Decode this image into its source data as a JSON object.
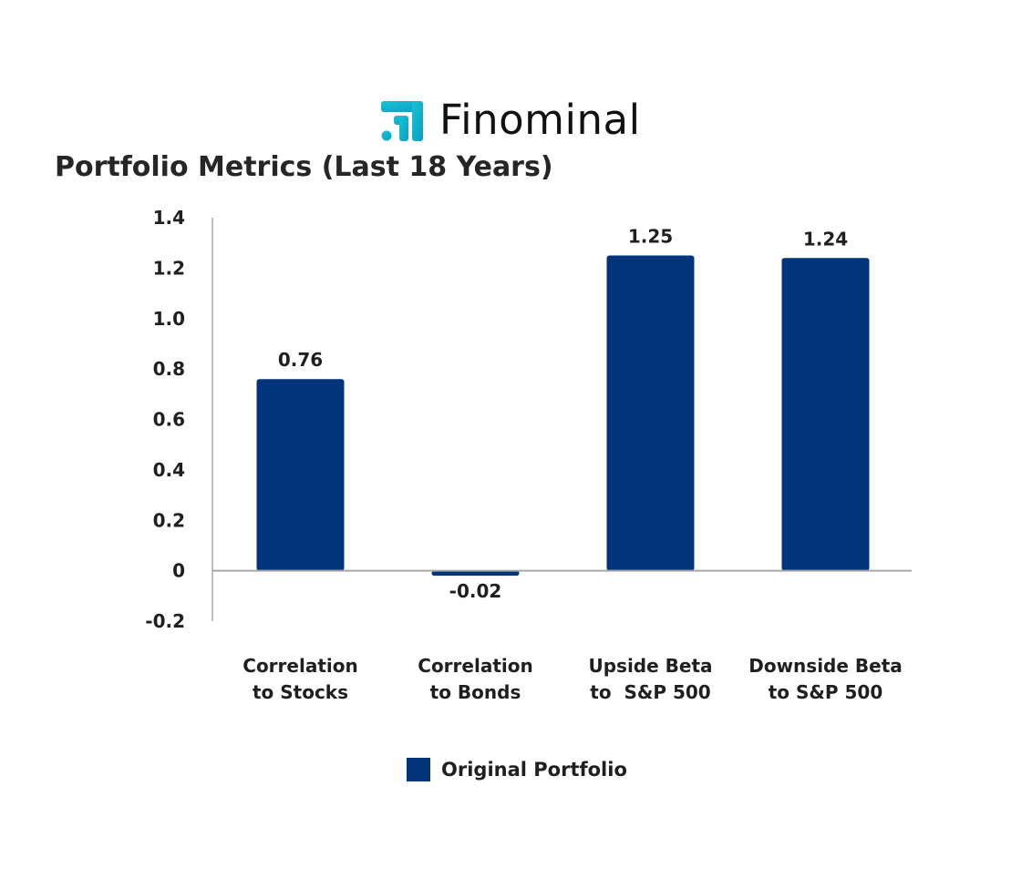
{
  "brand": {
    "name": "Finominal",
    "logo_colors": [
      "#19c3d3",
      "#0a9ec4"
    ]
  },
  "chart_data": {
    "type": "bar",
    "title": "Portfolio Metrics (Last 18 Years)",
    "categories": [
      [
        "Correlation",
        "to Stocks"
      ],
      [
        "Correlation",
        "to Bonds"
      ],
      [
        "Upside Beta",
        "to  S&P 500"
      ],
      [
        "Downside Beta",
        "to S&P 500"
      ]
    ],
    "series": [
      {
        "name": "Original Portfolio",
        "values": [
          0.76,
          -0.02,
          1.25,
          1.24
        ],
        "data_labels": [
          "0.76",
          "-0.02",
          "1.25",
          "1.24"
        ],
        "color": "#02347a"
      }
    ],
    "ylim": [
      -0.2,
      1.4
    ],
    "yticks": [
      1.4,
      1.2,
      1.0,
      0.8,
      0.6,
      0.4,
      0.2,
      0,
      -0.2
    ],
    "ytick_labels": [
      "1.4",
      "1.2",
      "1.0",
      "0.8",
      "0.6",
      "0.4",
      "0.2",
      "0",
      "-0.2"
    ],
    "grid": false,
    "legend_position": "bottom"
  }
}
